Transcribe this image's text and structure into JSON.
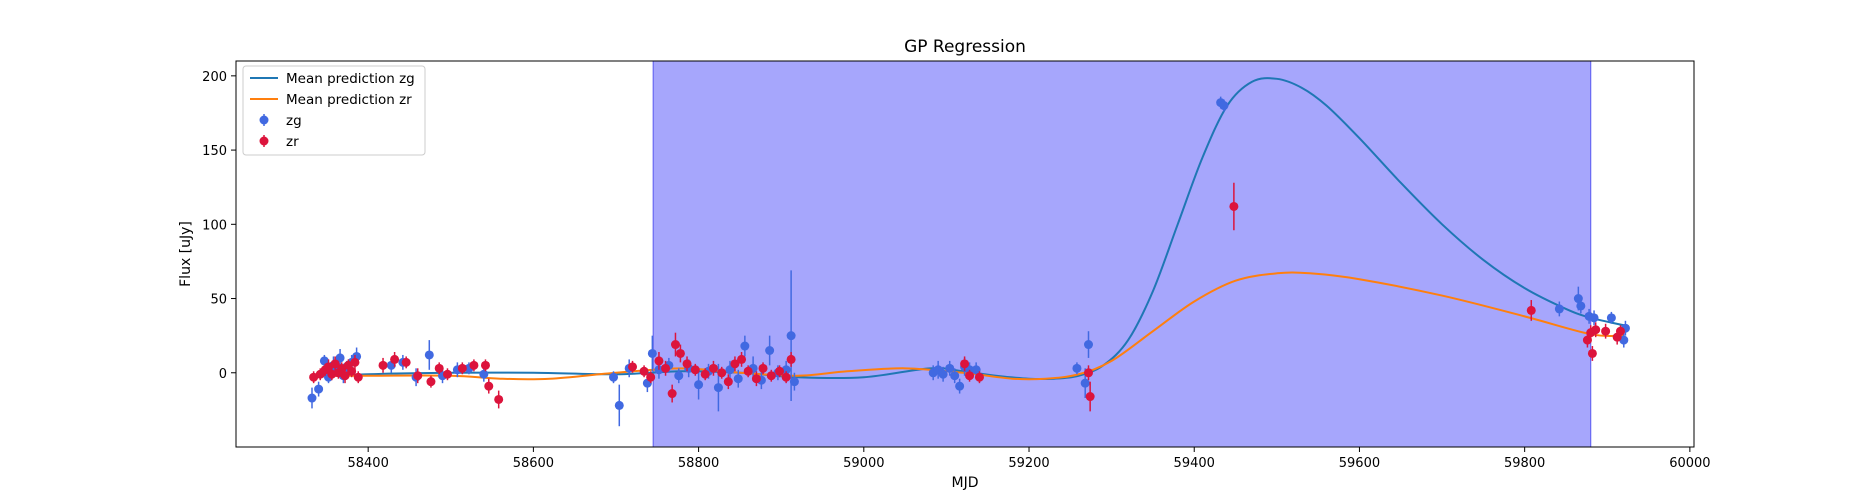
{
  "chart_data": {
    "type": "scatter",
    "title": "GP Regression",
    "xlabel": "MJD",
    "ylabel": "Flux [uJy]",
    "xlim": [
      58240,
      60005
    ],
    "ylim": [
      -50,
      210
    ],
    "xticks": [
      58400,
      58600,
      58800,
      59000,
      59200,
      59400,
      59600,
      59800,
      60000
    ],
    "yticks": [
      0,
      50,
      100,
      150,
      200
    ],
    "grid": false,
    "legend_position": "top-left",
    "shaded_region": {
      "x_start": 58745,
      "x_end": 59880,
      "color": "#a6a6fc"
    },
    "series": [
      {
        "name": "Mean prediction zg",
        "kind": "line",
        "color": "#1f77b4",
        "x": [
          58330,
          58400,
          58500,
          58600,
          58700,
          58780,
          58850,
          58920,
          59000,
          59080,
          59120,
          59160,
          59200,
          59230,
          59260,
          59290,
          59320,
          59350,
          59380,
          59410,
          59440,
          59470,
          59500,
          59530,
          59560,
          59600,
          59650,
          59700,
          59750,
          59800,
          59850,
          59880,
          59920
        ],
        "y": [
          -3,
          -1,
          0,
          0,
          -1,
          1,
          0,
          -3,
          -3,
          3,
          1,
          -2,
          -4,
          -4,
          -2,
          5,
          22,
          55,
          100,
          145,
          180,
          196,
          198,
          192,
          180,
          158,
          128,
          100,
          76,
          57,
          43,
          37,
          32
        ]
      },
      {
        "name": "Mean prediction zr",
        "kind": "line",
        "color": "#ff7f0e",
        "x": [
          58330,
          58400,
          58500,
          58560,
          58620,
          58700,
          58780,
          58850,
          58920,
          58980,
          59050,
          59120,
          59180,
          59220,
          59260,
          59300,
          59350,
          59400,
          59450,
          59500,
          59540,
          59600,
          59700,
          59800,
          59880,
          59920
        ],
        "y": [
          -2,
          -2,
          -2,
          -4,
          -4,
          0,
          3,
          0,
          -2,
          1,
          3,
          0,
          -4,
          -4,
          -1,
          8,
          28,
          48,
          62,
          67,
          67,
          63,
          52,
          38,
          26,
          25
        ]
      },
      {
        "name": "zg",
        "kind": "errorbar",
        "color": "#4169e1",
        "points": [
          [
            58332,
            -17,
            7
          ],
          [
            58340,
            -11,
            5
          ],
          [
            58347,
            8,
            4
          ],
          [
            58352,
            -3,
            4
          ],
          [
            58358,
            5,
            6
          ],
          [
            58362,
            2,
            4
          ],
          [
            58366,
            10,
            6
          ],
          [
            58370,
            -2,
            5
          ],
          [
            58374,
            4,
            4
          ],
          [
            58380,
            7,
            5
          ],
          [
            58386,
            11,
            6
          ],
          [
            58428,
            5,
            5
          ],
          [
            58442,
            7,
            5
          ],
          [
            58458,
            -3,
            6
          ],
          [
            58474,
            12,
            10
          ],
          [
            58490,
            -2,
            5
          ],
          [
            58508,
            2,
            5
          ],
          [
            58522,
            3,
            4
          ],
          [
            58540,
            -1,
            5
          ],
          [
            58697,
            -3,
            4
          ],
          [
            58704,
            -22,
            14
          ],
          [
            58716,
            3,
            6
          ],
          [
            58738,
            -7,
            6
          ],
          [
            58744,
            13,
            12
          ],
          [
            58752,
            2,
            6
          ],
          [
            58764,
            5,
            5
          ],
          [
            58776,
            -2,
            5
          ],
          [
            58788,
            3,
            6
          ],
          [
            58800,
            -8,
            10
          ],
          [
            58812,
            1,
            5
          ],
          [
            58824,
            -10,
            16
          ],
          [
            58838,
            2,
            6
          ],
          [
            58848,
            -4,
            6
          ],
          [
            58856,
            18,
            7
          ],
          [
            58866,
            3,
            8
          ],
          [
            58876,
            -5,
            6
          ],
          [
            58886,
            15,
            10
          ],
          [
            58896,
            0,
            5
          ],
          [
            58906,
            2,
            6
          ],
          [
            58912,
            25,
            44
          ],
          [
            58916,
            -6,
            6
          ],
          [
            59084,
            0,
            5
          ],
          [
            59090,
            2,
            6
          ],
          [
            59096,
            -1,
            5
          ],
          [
            59104,
            3,
            5
          ],
          [
            59110,
            -2,
            5
          ],
          [
            59116,
            -9,
            5
          ],
          [
            59122,
            4,
            6
          ],
          [
            59128,
            2,
            5
          ],
          [
            59136,
            2,
            5
          ],
          [
            59258,
            3,
            4
          ],
          [
            59268,
            -7,
            10
          ],
          [
            59272,
            19,
            9
          ],
          [
            59432,
            182,
            4
          ],
          [
            59436,
            180,
            4
          ],
          [
            59842,
            43,
            5
          ],
          [
            59865,
            50,
            8
          ],
          [
            59868,
            45,
            5
          ],
          [
            59878,
            38,
            5
          ],
          [
            59884,
            37,
            5
          ],
          [
            59905,
            37,
            4
          ],
          [
            59920,
            22,
            5
          ],
          [
            59922,
            30,
            5
          ]
        ]
      },
      {
        "name": "zr",
        "kind": "errorbar",
        "color": "#dc143c",
        "points": [
          [
            58334,
            -3,
            4
          ],
          [
            58342,
            -1,
            4
          ],
          [
            58348,
            2,
            4
          ],
          [
            58352,
            4,
            5
          ],
          [
            58356,
            -1,
            4
          ],
          [
            58360,
            6,
            5
          ],
          [
            58364,
            0,
            4
          ],
          [
            58368,
            3,
            4
          ],
          [
            58372,
            -2,
            5
          ],
          [
            58376,
            5,
            4
          ],
          [
            58380,
            1,
            4
          ],
          [
            58384,
            7,
            5
          ],
          [
            58388,
            -3,
            4
          ],
          [
            58418,
            5,
            5
          ],
          [
            58432,
            9,
            5
          ],
          [
            58446,
            7,
            4
          ],
          [
            58460,
            -2,
            5
          ],
          [
            58476,
            -6,
            4
          ],
          [
            58486,
            3,
            4
          ],
          [
            58496,
            -1,
            4
          ],
          [
            58514,
            3,
            4
          ],
          [
            58528,
            5,
            4
          ],
          [
            58542,
            5,
            4
          ],
          [
            58546,
            -9,
            5
          ],
          [
            58558,
            -18,
            6
          ],
          [
            58720,
            4,
            4
          ],
          [
            58734,
            1,
            4
          ],
          [
            58742,
            -3,
            4
          ],
          [
            58752,
            8,
            6
          ],
          [
            58760,
            3,
            5
          ],
          [
            58768,
            -14,
            6
          ],
          [
            58772,
            19,
            8
          ],
          [
            58778,
            13,
            6
          ],
          [
            58786,
            6,
            5
          ],
          [
            58796,
            2,
            4
          ],
          [
            58808,
            -1,
            4
          ],
          [
            58818,
            3,
            5
          ],
          [
            58828,
            0,
            4
          ],
          [
            58836,
            -6,
            5
          ],
          [
            58844,
            6,
            5
          ],
          [
            58852,
            9,
            5
          ],
          [
            58860,
            1,
            4
          ],
          [
            58870,
            -4,
            5
          ],
          [
            58878,
            3,
            4
          ],
          [
            58888,
            -2,
            4
          ],
          [
            58898,
            1,
            4
          ],
          [
            58906,
            -3,
            4
          ],
          [
            58912,
            9,
            5
          ],
          [
            59122,
            6,
            5
          ],
          [
            59128,
            -2,
            4
          ],
          [
            59140,
            -3,
            4
          ],
          [
            59272,
            0,
            5
          ],
          [
            59274,
            -16,
            10
          ],
          [
            59448,
            112,
            16
          ],
          [
            59808,
            42,
            7
          ],
          [
            59876,
            22,
            5
          ],
          [
            59880,
            27,
            5
          ],
          [
            59882,
            13,
            5
          ],
          [
            59886,
            29,
            5
          ],
          [
            59898,
            28,
            5
          ],
          [
            59912,
            24,
            5
          ],
          [
            59916,
            28,
            4
          ]
        ]
      }
    ]
  }
}
